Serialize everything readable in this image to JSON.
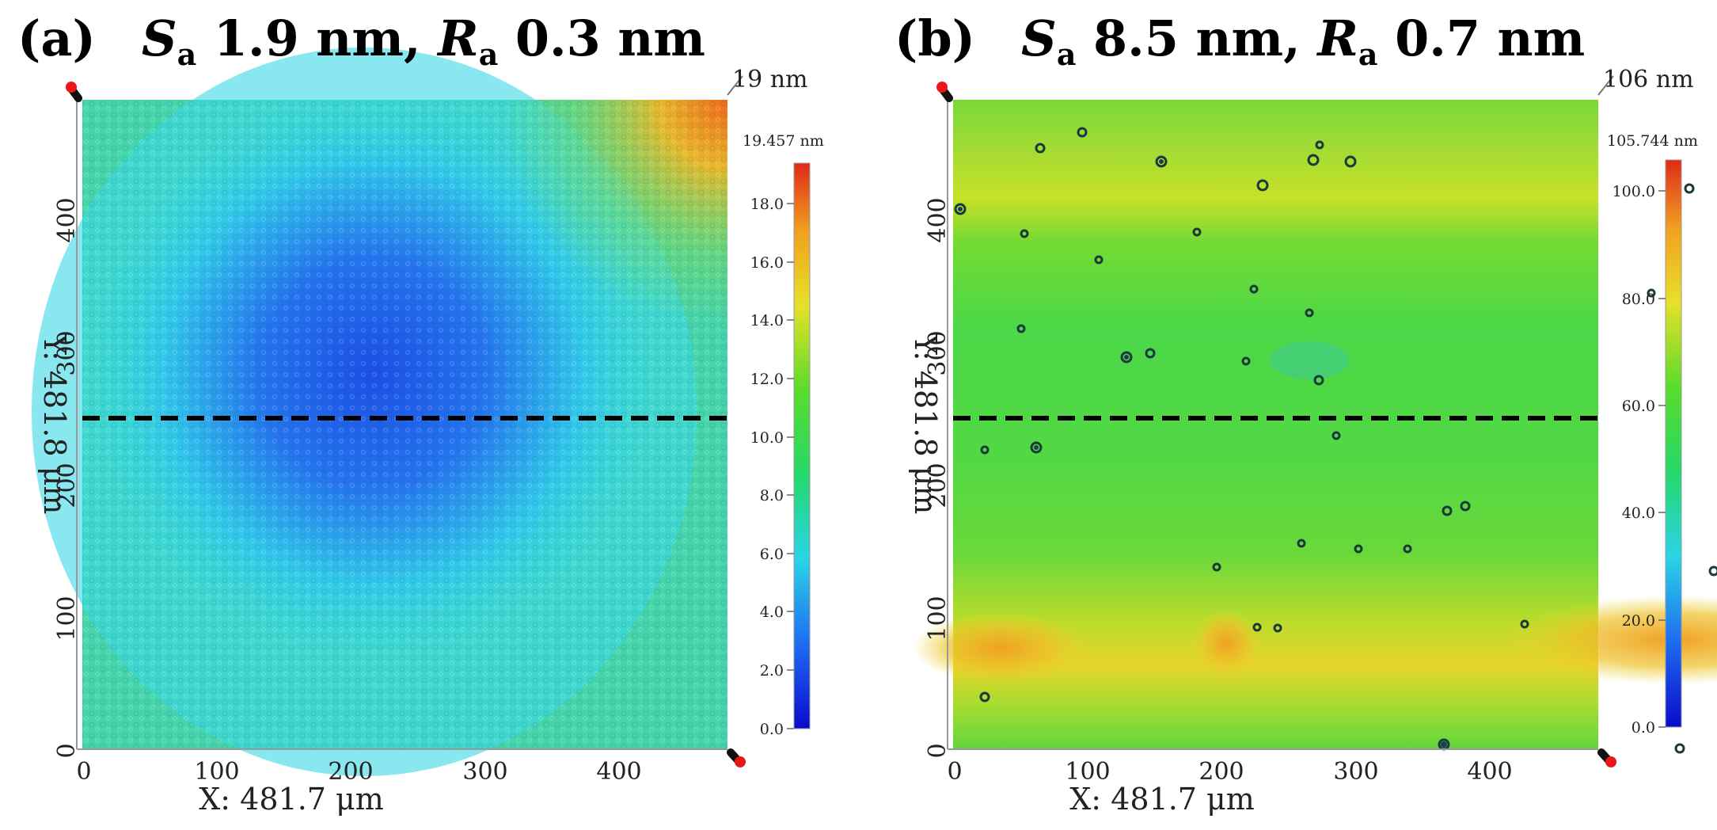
{
  "panels": [
    {
      "tag": "(a)",
      "sa_symbol": "S",
      "sa_sub": "a",
      "sa_value": "1.9 nm,",
      "ra_symbol": "R",
      "ra_sub": "a",
      "ra_value": "0.3 nm",
      "z_max_label": "19 nm",
      "colorbar_max_label": "19.457 nm",
      "colorbar_ticks": [
        "0.0",
        "2.0",
        "4.0",
        "6.0",
        "8.0",
        "10.0",
        "12.0",
        "14.0",
        "16.0",
        "18.0"
      ],
      "y_ticks": [
        "0",
        "100",
        "200",
        "300",
        "400"
      ],
      "x_ticks": [
        "0",
        "100",
        "200",
        "300",
        "400"
      ],
      "x_label": "X: 481.7 μm",
      "y_label": "Y: 481.8 μm"
    },
    {
      "tag": "(b)",
      "sa_symbol": "S",
      "sa_sub": "a",
      "sa_value": "8.5 nm,",
      "ra_symbol": "R",
      "ra_sub": "a",
      "ra_value": "0.7 nm",
      "z_max_label": "106 nm",
      "colorbar_max_label": "105.744 nm",
      "colorbar_ticks": [
        "0.0",
        "20.0",
        "40.0",
        "60.0",
        "80.0",
        "100.0"
      ],
      "y_ticks": [
        "0",
        "100",
        "200",
        "300",
        "400"
      ],
      "x_ticks": [
        "0",
        "100",
        "200",
        "300",
        "400"
      ],
      "x_label": "X: 481.7 μm",
      "y_label": "Y: 481.8 μm"
    }
  ],
  "colors": {
    "jet": [
      "#0a0acc",
      "#1e6cf0",
      "#2ad4e8",
      "#25d86a",
      "#5bdc2a",
      "#e8e02a",
      "#f0a020",
      "#e02a18"
    ]
  }
}
